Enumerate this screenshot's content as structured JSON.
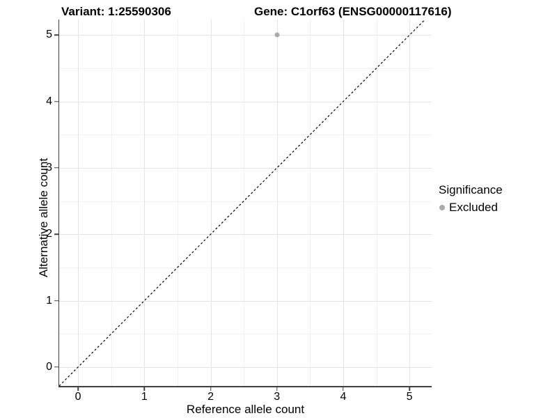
{
  "chart_data": {
    "type": "scatter",
    "titles": {
      "left": "Variant: 1:25590306",
      "right": "Gene: C1orf63 (ENSG00000117616)"
    },
    "xlabel": "Reference allele count",
    "ylabel": "Alternative allele count",
    "x_ticks": [
      0,
      1,
      2,
      3,
      4,
      5
    ],
    "y_ticks": [
      0,
      1,
      2,
      3,
      4,
      5
    ],
    "x_minor_ticks": [
      0.5,
      1.5,
      2.5,
      3.5,
      4.5
    ],
    "y_minor_ticks": [
      0.5,
      1.5,
      2.5,
      3.5,
      4.5
    ],
    "xlim": [
      -0.285,
      5.335
    ],
    "ylim": [
      -0.285,
      5.235
    ],
    "grid": "major+minor",
    "points": [
      {
        "x": 3,
        "y": 5,
        "series": "Excluded"
      }
    ],
    "reference_line": {
      "type": "identity",
      "slope": 1,
      "intercept": 0,
      "style": "dashed",
      "color": "#000000"
    },
    "legend": {
      "title": "Significance",
      "position": "right",
      "items": [
        {
          "label": "Excluded",
          "color": "#aaaaaa",
          "marker": "circle"
        }
      ]
    },
    "colors": {
      "point": "#aaaaaa",
      "grid_major": "#e4e4e4",
      "grid_minor": "#f1f1f1",
      "axis": "#404040",
      "background": "#ffffff",
      "text": "#000000"
    }
  }
}
